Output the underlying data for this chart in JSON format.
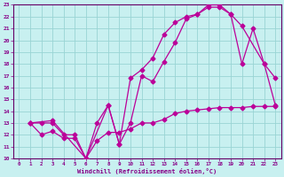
{
  "xlabel": "Windchill (Refroidissement éolien,°C)",
  "bg_color": "#c8f0f0",
  "line_color": "#bb0099",
  "grid_color": "#99d4d4",
  "tick_color": "#880088",
  "spine_color": "#660066",
  "xlim": [
    -0.5,
    23.5
  ],
  "ylim": [
    10,
    23
  ],
  "xticks": [
    0,
    1,
    2,
    3,
    4,
    5,
    6,
    7,
    8,
    9,
    10,
    11,
    12,
    13,
    14,
    15,
    16,
    17,
    18,
    19,
    20,
    21,
    22,
    23
  ],
  "yticks": [
    10,
    11,
    12,
    13,
    14,
    15,
    16,
    17,
    18,
    19,
    20,
    21,
    22,
    23
  ],
  "line1_x": [
    1,
    2,
    3,
    4,
    5,
    6,
    7,
    8,
    9,
    10,
    11,
    12,
    13,
    14,
    15,
    16,
    17,
    18,
    19,
    20,
    21,
    22,
    23
  ],
  "line1_y": [
    13,
    13,
    13,
    12,
    12,
    10,
    13,
    14.5,
    11.2,
    13,
    17,
    16.5,
    18.2,
    19.8,
    21.8,
    22.2,
    22.8,
    22.8,
    22.2,
    18,
    21,
    18,
    16.8
  ],
  "line2_x": [
    1,
    2,
    3,
    4,
    5,
    6,
    7,
    8,
    9,
    10,
    11,
    12,
    13,
    14,
    15,
    16,
    17,
    18,
    19,
    20,
    21,
    22,
    23
  ],
  "line2_y": [
    13,
    12,
    12.3,
    11.7,
    11.7,
    10,
    11.5,
    12.2,
    12.2,
    12.5,
    13,
    13,
    13.3,
    13.8,
    14,
    14.1,
    14.2,
    14.3,
    14.3,
    14.3,
    14.4,
    14.4,
    14.4
  ],
  "line3_x": [
    1,
    3,
    6,
    8,
    9,
    10,
    11,
    12,
    13,
    14,
    15,
    16,
    17,
    18,
    19,
    20,
    22,
    23
  ],
  "line3_y": [
    13,
    13.2,
    10,
    14.5,
    11.2,
    16.8,
    17.5,
    18.5,
    20.5,
    21.5,
    22,
    22.2,
    23,
    23,
    22.2,
    21.2,
    18,
    14.5
  ]
}
